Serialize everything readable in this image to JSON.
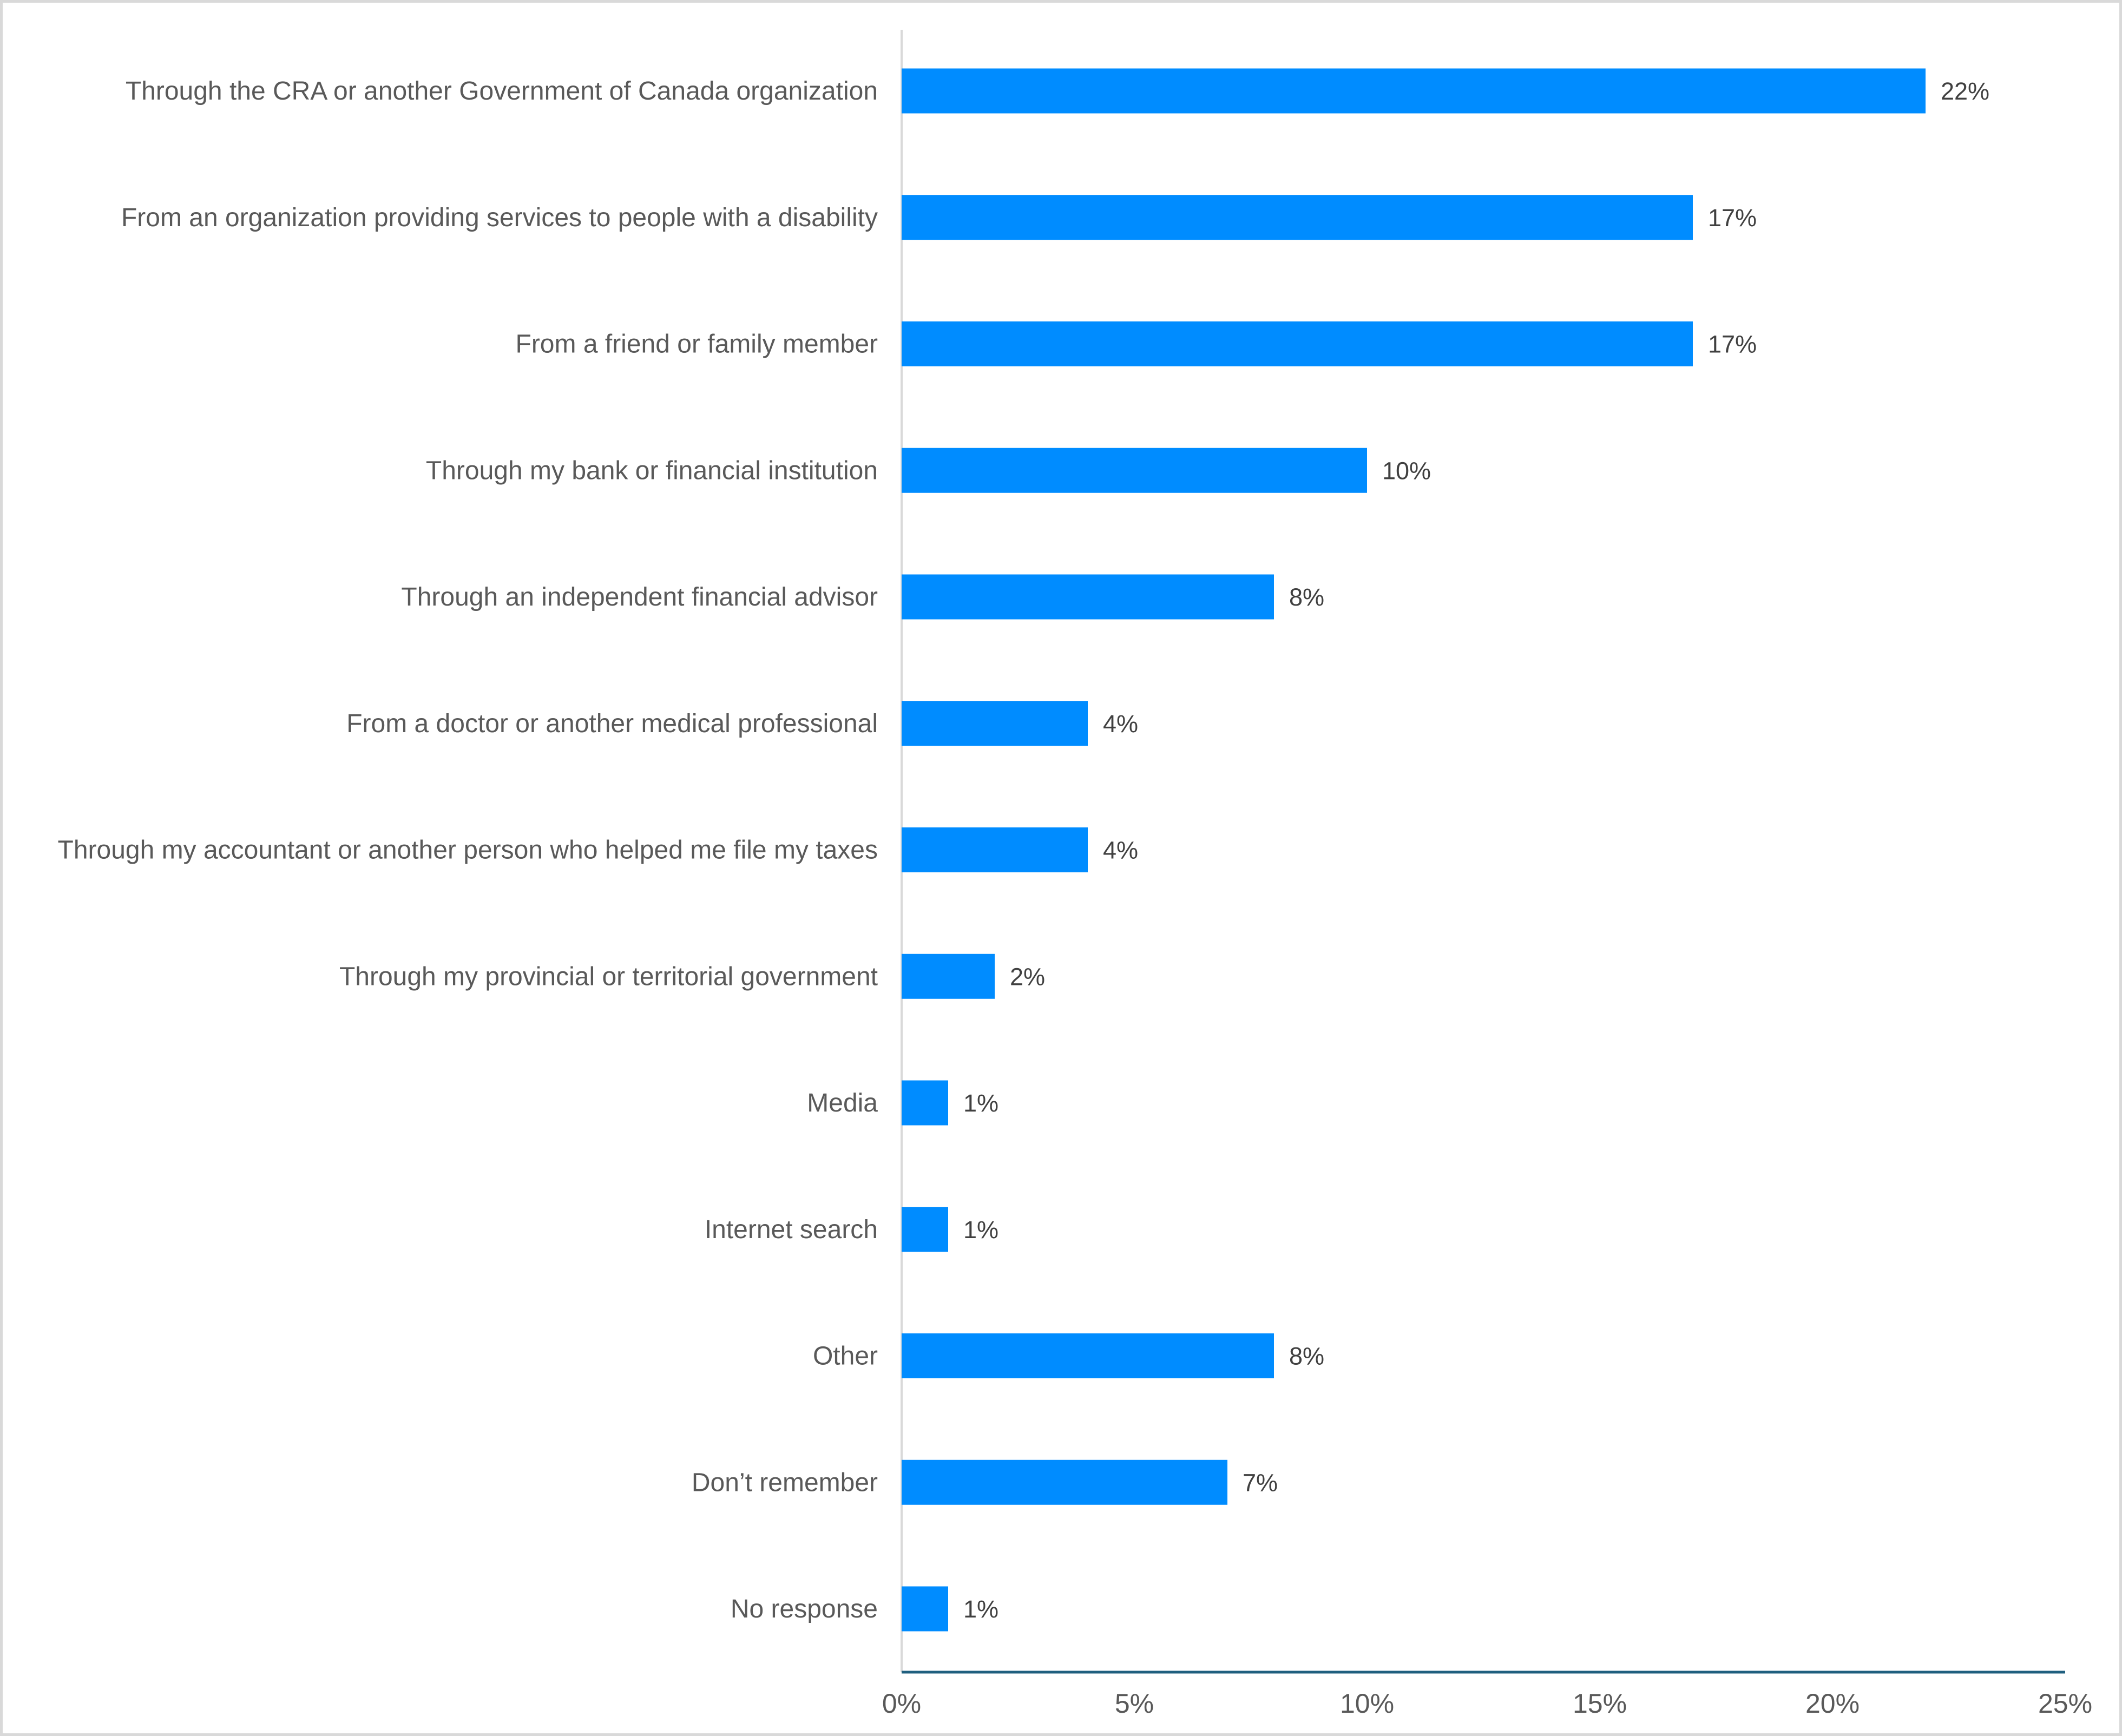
{
  "chart_data": {
    "type": "bar",
    "orientation": "horizontal",
    "categories": [
      "Through the CRA or another Government of Canada organization",
      "From an organization providing services to people with a disability",
      "From a friend or family member",
      "Through my bank or financial institution",
      "Through an independent financial advisor",
      "From a doctor or another medical professional",
      "Through my accountant or another person who helped me file my taxes",
      "Through my provincial or territorial government",
      "Media",
      "Internet search",
      "Other",
      "Don’t remember",
      "No response"
    ],
    "values": [
      22,
      17,
      17,
      10,
      8,
      4,
      4,
      2,
      1,
      1,
      8,
      7,
      1
    ],
    "data_labels": [
      "22%",
      "17%",
      "17%",
      "10%",
      "8%",
      "4%",
      "4%",
      "2%",
      "1%",
      "1%",
      "8%",
      "7%",
      "1%"
    ],
    "title": "",
    "xlabel": "",
    "ylabel": "",
    "xlim": [
      0,
      25
    ],
    "x_ticks": [
      0,
      5,
      10,
      15,
      20,
      25
    ],
    "x_tick_labels": [
      "0%",
      "5%",
      "10%",
      "15%",
      "20%",
      "25%"
    ],
    "grid": false,
    "legend": "none",
    "colors": {
      "bar": "#008cff",
      "axis": "#1f5f7f",
      "category_axis": "#d9d9d9"
    }
  }
}
